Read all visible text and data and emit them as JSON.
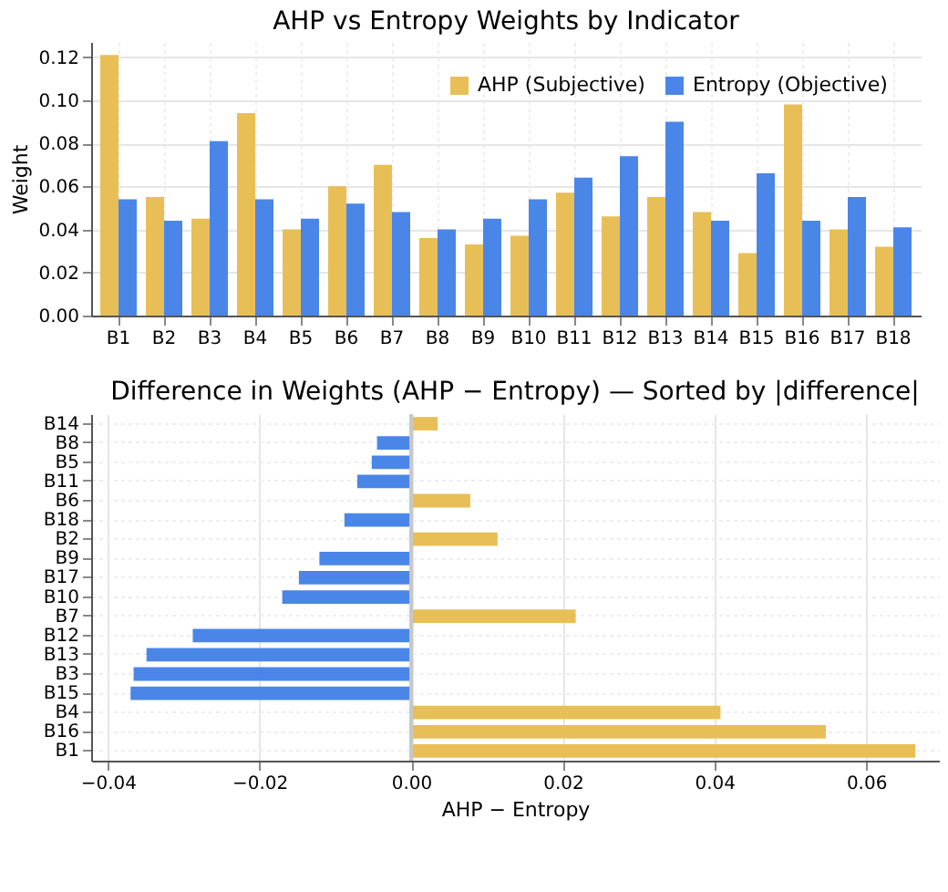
{
  "chart_data": [
    {
      "type": "bar",
      "title": "AHP vs Entropy Weights by Indicator",
      "ylabel": "Weight",
      "categories": [
        "B1",
        "B2",
        "B3",
        "B4",
        "B5",
        "B6",
        "B7",
        "B8",
        "B9",
        "B10",
        "B11",
        "B12",
        "B13",
        "B14",
        "B15",
        "B16",
        "B17",
        "B18"
      ],
      "series": [
        {
          "name": "AHP (Subjective)",
          "color": "#e8bf56",
          "values": [
            0.121,
            0.055,
            0.045,
            0.094,
            0.04,
            0.06,
            0.07,
            0.036,
            0.033,
            0.037,
            0.057,
            0.046,
            0.055,
            0.048,
            0.029,
            0.098,
            0.04,
            0.032
          ]
        },
        {
          "name": "Entropy (Objective)",
          "color": "#4a86e8",
          "values": [
            0.054,
            0.044,
            0.081,
            0.054,
            0.045,
            0.052,
            0.048,
            0.04,
            0.045,
            0.054,
            0.064,
            0.074,
            0.09,
            0.044,
            0.066,
            0.044,
            0.055,
            0.041
          ]
        }
      ],
      "ylim": [
        0,
        0.127
      ],
      "yticks": [
        {
          "value": 0,
          "label": "0.00"
        },
        0.02,
        0.04,
        0.06,
        0.08,
        {
          "value": 0.1,
          "label": "0.10"
        },
        0.12
      ],
      "grid": true,
      "legend": "top right"
    },
    {
      "type": "bar",
      "orientation": "horizontal",
      "title": "Difference in Weights (AHP − Entropy) — Sorted by |difference|",
      "xlabel": "AHP − Entropy",
      "categories": [
        "B14",
        "B8",
        "B5",
        "B11",
        "B6",
        "B18",
        "B2",
        "B9",
        "B17",
        "B10",
        "B7",
        "B12",
        "B13",
        "B3",
        "B15",
        "B4",
        "B16",
        "B1"
      ],
      "values": [
        0.0035,
        -0.0045,
        -0.0052,
        -0.0071,
        0.0078,
        -0.0088,
        0.0114,
        -0.0121,
        -0.0148,
        -0.017,
        0.0217,
        -0.0288,
        -0.0349,
        -0.0366,
        -0.037,
        0.0408,
        0.0547,
        0.0665
      ],
      "colors": [
        "#e8bf56",
        "#4a86e8",
        "#4a86e8",
        "#4a86e8",
        "#e8bf56",
        "#4a86e8",
        "#e8bf56",
        "#4a86e8",
        "#4a86e8",
        "#4a86e8",
        "#e8bf56",
        "#4a86e8",
        "#4a86e8",
        "#4a86e8",
        "#4a86e8",
        "#e8bf56",
        "#e8bf56",
        "#e8bf56"
      ],
      "xlim": [
        -0.0422,
        0.0696
      ],
      "xticks": [
        {
          "value": -0.04,
          "label": "−0.04"
        },
        {
          "value": -0.02,
          "label": "−0.02"
        },
        {
          "value": 0,
          "label": "0.00"
        },
        0.02,
        0.04,
        0.06
      ],
      "ref_lines": [
        {
          "axis": "x",
          "value": 0,
          "color": "#c8c8c8"
        }
      ],
      "grid": true
    }
  ]
}
